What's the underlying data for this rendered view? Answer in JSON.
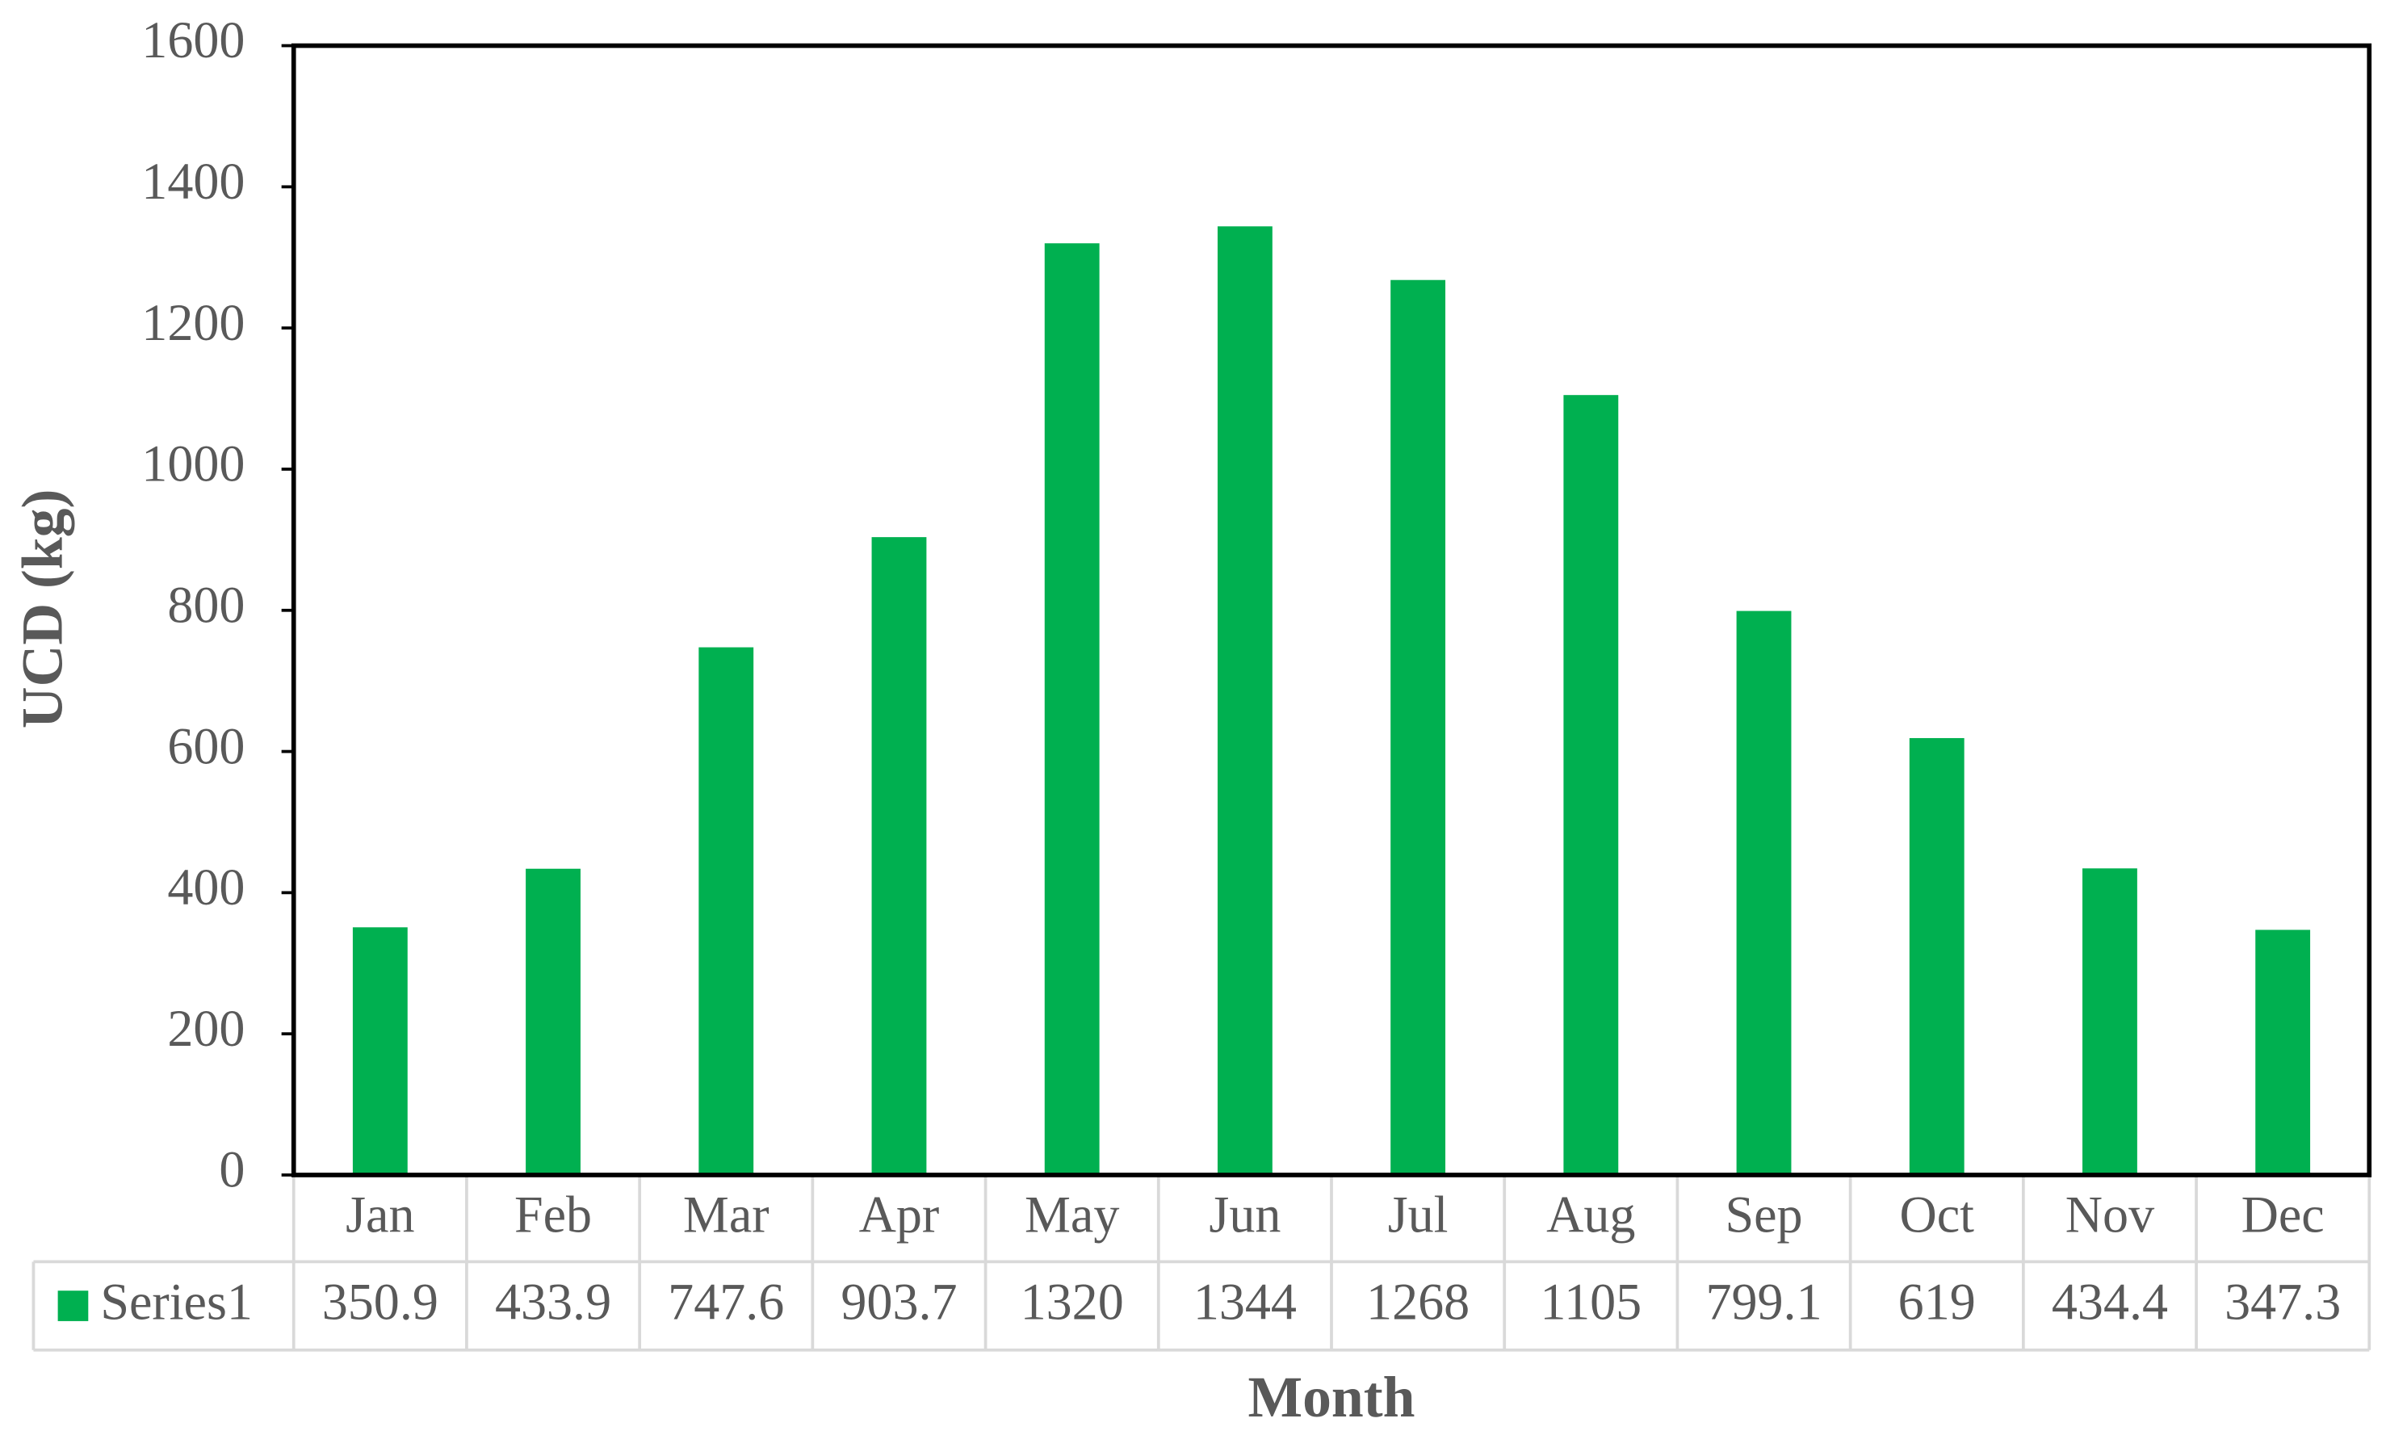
{
  "chart_data": {
    "type": "bar",
    "x_label": "Month",
    "y_label": "UCD  (kg)",
    "categories": [
      "Jan",
      "Feb",
      "Mar",
      "Apr",
      "May",
      "Jun",
      "Jul",
      "Aug",
      "Sep",
      "Oct",
      "Nov",
      "Dec"
    ],
    "series": [
      {
        "name": "Series1",
        "color": "#00b050",
        "values": [
          350.9,
          433.9,
          747.6,
          903.7,
          1320,
          1344,
          1268,
          1105,
          799.1,
          619,
          434.4,
          347.3
        ]
      }
    ],
    "ylim": [
      0,
      1600
    ],
    "yticks": [
      0,
      200,
      400,
      600,
      800,
      1000,
      1200,
      1400,
      1600
    ],
    "grid": false,
    "data_table": true
  }
}
